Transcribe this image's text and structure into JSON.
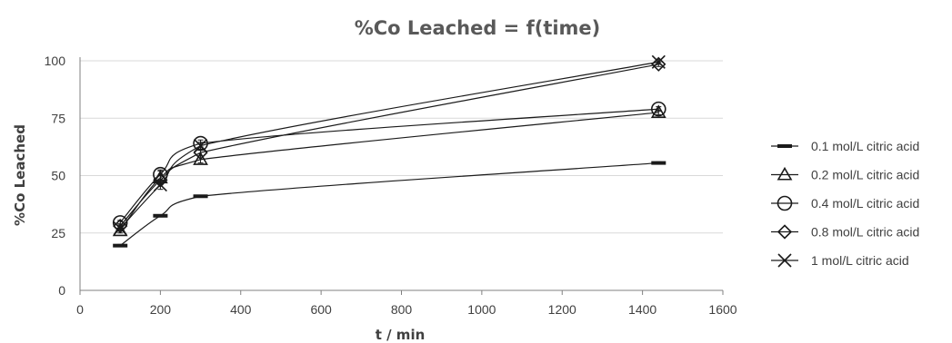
{
  "chart_data": {
    "type": "line",
    "title": "%Co Leached = f(time)",
    "xlabel": "t / min",
    "ylabel": "%Co Leached",
    "xlim": [
      0,
      1600
    ],
    "ylim": [
      0,
      100
    ],
    "xticks": [
      0,
      200,
      400,
      600,
      800,
      1000,
      1200,
      1400,
      1600
    ],
    "yticks": [
      0,
      25,
      50,
      75,
      100
    ],
    "grid": "horizontal",
    "legend_position": "right",
    "x": [
      100,
      200,
      300,
      1440
    ],
    "series": [
      {
        "name": "0.1 mol/L citric acid",
        "marker": "dash",
        "values": [
          19.5,
          32.5,
          41,
          55.5
        ],
        "errors": [
          0.5,
          0.5,
          0.5,
          0.5
        ]
      },
      {
        "name": "0.2 mol/L citric acid",
        "marker": "triangle",
        "values": [
          26,
          49,
          57,
          77.5
        ],
        "errors": [
          1,
          3,
          1.5,
          1
        ]
      },
      {
        "name": "0.4 mol/L citric acid",
        "marker": "circle",
        "values": [
          29.5,
          50.5,
          64,
          79
        ],
        "errors": [
          1,
          2,
          1.5,
          1
        ]
      },
      {
        "name": "0.8 mol/L citric acid",
        "marker": "diamond",
        "values": [
          28,
          48,
          60,
          98.5
        ],
        "errors": [
          1,
          2,
          1.5,
          1
        ]
      },
      {
        "name": "1 mol/L citric acid",
        "marker": "x",
        "values": [
          27,
          46,
          63,
          99.5
        ],
        "errors": [
          1,
          2,
          1.5,
          1
        ]
      }
    ]
  }
}
